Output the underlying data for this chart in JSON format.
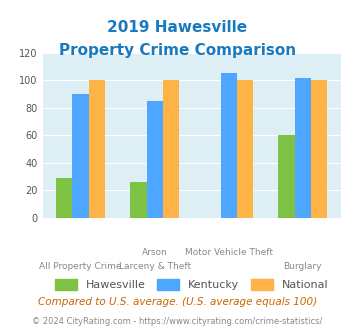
{
  "title_line1": "2019 Hawesville",
  "title_line2": "Property Crime Comparison",
  "title_color": "#1a7abf",
  "cat_labels_top": [
    "",
    "Arson",
    "Motor Vehicle Theft",
    ""
  ],
  "cat_labels_bot": [
    "All Property Crime",
    "Larceny & Theft",
    "",
    "Burglary"
  ],
  "hawesville": [
    29,
    26,
    0,
    60
  ],
  "kentucky": [
    90,
    85,
    105,
    102
  ],
  "national": [
    100,
    100,
    100,
    100
  ],
  "colors": {
    "hawesville": "#7dc242",
    "kentucky": "#4da6ff",
    "national": "#ffb347"
  },
  "ylim": [
    0,
    120
  ],
  "yticks": [
    0,
    20,
    40,
    60,
    80,
    100,
    120
  ],
  "plot_bg": "#ddeef5",
  "footer_note": "Compared to U.S. average. (U.S. average equals 100)",
  "footer_note_color": "#cc6600",
  "copyright": "© 2024 CityRating.com - https://www.cityrating.com/crime-statistics/",
  "copyright_color": "#888888",
  "legend_labels": [
    "Hawesville",
    "Kentucky",
    "National"
  ]
}
